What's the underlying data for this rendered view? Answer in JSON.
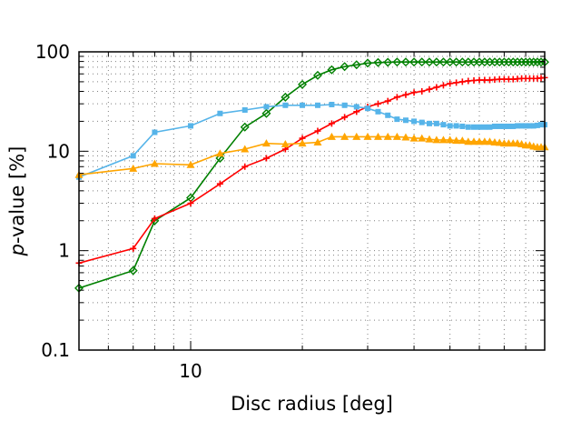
{
  "chart_data": {
    "type": "line",
    "title": "",
    "xlabel": "Disc radius [deg]",
    "ylabel_italic": "p",
    "ylabel_rest": "-value [%]",
    "xscale": "log",
    "yscale": "log",
    "xlim": [
      5,
      90
    ],
    "ylim": [
      0.1,
      100
    ],
    "x_ticks": [
      {
        "value": 10,
        "label": "10"
      }
    ],
    "y_ticks": [
      {
        "value": 0.1,
        "label": "0.1"
      },
      {
        "value": 1,
        "label": "1"
      },
      {
        "value": 10,
        "label": "10"
      },
      {
        "value": 100,
        "label": "100"
      }
    ],
    "grid": "dotted",
    "legend": "none",
    "series": [
      {
        "color": "#008000",
        "marker": "diamond",
        "points": [
          [
            5,
            0.42
          ],
          [
            7,
            0.63
          ],
          [
            8,
            2.0
          ],
          [
            10,
            3.4
          ],
          [
            12,
            8.5
          ],
          [
            14,
            17.5
          ],
          [
            16,
            24
          ],
          [
            18,
            35
          ],
          [
            20,
            47
          ],
          [
            22,
            58
          ],
          [
            24,
            66
          ],
          [
            26,
            71
          ],
          [
            28,
            74
          ],
          [
            30,
            77
          ],
          [
            32,
            78
          ],
          [
            34,
            78.5
          ],
          [
            36,
            79
          ],
          [
            38,
            79
          ],
          [
            40,
            79
          ],
          [
            42,
            79
          ],
          [
            44,
            79
          ],
          [
            46,
            79
          ],
          [
            48,
            79
          ],
          [
            50,
            79
          ],
          [
            52,
            79
          ],
          [
            54,
            79
          ],
          [
            56,
            79
          ],
          [
            58,
            79
          ],
          [
            60,
            79
          ],
          [
            62,
            79
          ],
          [
            64,
            79
          ],
          [
            66,
            79
          ],
          [
            68,
            79
          ],
          [
            70,
            79
          ],
          [
            72,
            79
          ],
          [
            74,
            79
          ],
          [
            76,
            79
          ],
          [
            78,
            79
          ],
          [
            80,
            79
          ],
          [
            82,
            79
          ],
          [
            84,
            79
          ],
          [
            86,
            79
          ],
          [
            88,
            79
          ],
          [
            90,
            79
          ]
        ]
      },
      {
        "color": "#ff0000",
        "marker": "plus",
        "points": [
          [
            5,
            0.75
          ],
          [
            7,
            1.05
          ],
          [
            8,
            2.1
          ],
          [
            10,
            3.0
          ],
          [
            12,
            4.7
          ],
          [
            14,
            7.0
          ],
          [
            16,
            8.5
          ],
          [
            18,
            10.5
          ],
          [
            20,
            13.5
          ],
          [
            22,
            16
          ],
          [
            24,
            19
          ],
          [
            26,
            22
          ],
          [
            28,
            25
          ],
          [
            30,
            28
          ],
          [
            32,
            30
          ],
          [
            34,
            32
          ],
          [
            36,
            35
          ],
          [
            38,
            37
          ],
          [
            40,
            39
          ],
          [
            42,
            40
          ],
          [
            44,
            42
          ],
          [
            46,
            44
          ],
          [
            48,
            46
          ],
          [
            50,
            48
          ],
          [
            52,
            49
          ],
          [
            54,
            50
          ],
          [
            56,
            51
          ],
          [
            58,
            51.5
          ],
          [
            60,
            52
          ],
          [
            62,
            52
          ],
          [
            64,
            52
          ],
          [
            66,
            52.5
          ],
          [
            68,
            53
          ],
          [
            70,
            53
          ],
          [
            72,
            53
          ],
          [
            74,
            53
          ],
          [
            76,
            53.5
          ],
          [
            78,
            54
          ],
          [
            80,
            54
          ],
          [
            82,
            54
          ],
          [
            84,
            54
          ],
          [
            86,
            54
          ],
          [
            88,
            54.5
          ],
          [
            90,
            55
          ]
        ]
      },
      {
        "color": "#56b4e9",
        "marker": "square",
        "points": [
          [
            5,
            5.5
          ],
          [
            7,
            9
          ],
          [
            8,
            15.5
          ],
          [
            10,
            18
          ],
          [
            12,
            24
          ],
          [
            14,
            26
          ],
          [
            16,
            28
          ],
          [
            18,
            29
          ],
          [
            20,
            29
          ],
          [
            22,
            29
          ],
          [
            24,
            29.5
          ],
          [
            26,
            29
          ],
          [
            28,
            28
          ],
          [
            30,
            27
          ],
          [
            32,
            25
          ],
          [
            34,
            23
          ],
          [
            36,
            21
          ],
          [
            38,
            20.5
          ],
          [
            40,
            20
          ],
          [
            42,
            19.5
          ],
          [
            44,
            19
          ],
          [
            46,
            19
          ],
          [
            48,
            18.5
          ],
          [
            50,
            18
          ],
          [
            52,
            18
          ],
          [
            54,
            17.8
          ],
          [
            56,
            17.5
          ],
          [
            58,
            17.5
          ],
          [
            60,
            17.5
          ],
          [
            62,
            17.5
          ],
          [
            64,
            17.5
          ],
          [
            66,
            17.8
          ],
          [
            68,
            17.8
          ],
          [
            70,
            17.8
          ],
          [
            72,
            17.8
          ],
          [
            74,
            17.8
          ],
          [
            76,
            18
          ],
          [
            78,
            18
          ],
          [
            80,
            18
          ],
          [
            82,
            18
          ],
          [
            84,
            18
          ],
          [
            86,
            18.2
          ],
          [
            88,
            18.5
          ],
          [
            90,
            18.5
          ]
        ]
      },
      {
        "color": "#ffa500",
        "marker": "triangle",
        "points": [
          [
            5,
            5.8
          ],
          [
            7,
            6.7
          ],
          [
            8,
            7.5
          ],
          [
            10,
            7.3
          ],
          [
            12,
            9.5
          ],
          [
            14,
            10.5
          ],
          [
            16,
            12
          ],
          [
            18,
            11.8
          ],
          [
            20,
            12
          ],
          [
            22,
            12.3
          ],
          [
            24,
            14
          ],
          [
            26,
            14
          ],
          [
            28,
            14
          ],
          [
            30,
            14
          ],
          [
            32,
            14
          ],
          [
            34,
            14
          ],
          [
            36,
            14
          ],
          [
            38,
            13.8
          ],
          [
            40,
            13.5
          ],
          [
            42,
            13.5
          ],
          [
            44,
            13.2
          ],
          [
            46,
            13
          ],
          [
            48,
            13
          ],
          [
            50,
            13
          ],
          [
            52,
            12.8
          ],
          [
            54,
            12.8
          ],
          [
            56,
            12.5
          ],
          [
            58,
            12.5
          ],
          [
            60,
            12.5
          ],
          [
            62,
            12.5
          ],
          [
            64,
            12.5
          ],
          [
            66,
            12.3
          ],
          [
            68,
            12.2
          ],
          [
            70,
            12
          ],
          [
            72,
            12
          ],
          [
            74,
            12
          ],
          [
            76,
            12
          ],
          [
            78,
            11.8
          ],
          [
            80,
            11.5
          ],
          [
            82,
            11.5
          ],
          [
            84,
            11.2
          ],
          [
            86,
            11
          ],
          [
            88,
            11
          ],
          [
            90,
            11
          ]
        ]
      }
    ]
  }
}
